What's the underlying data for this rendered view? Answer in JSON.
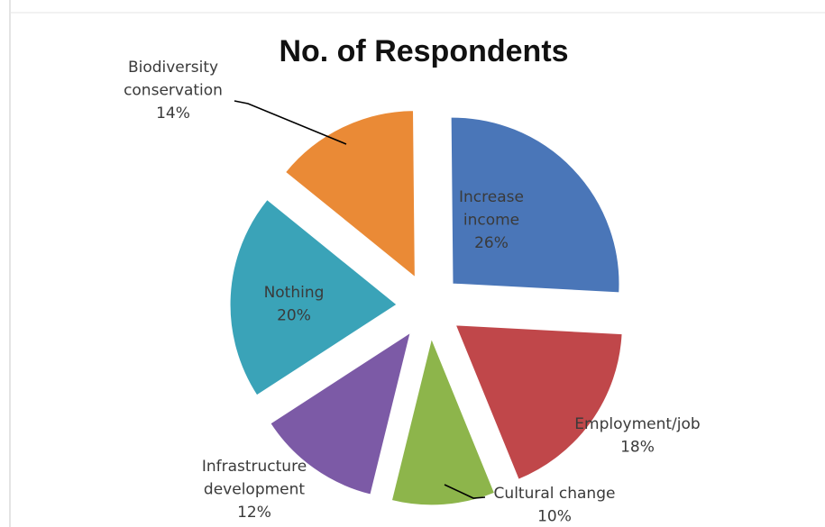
{
  "chart_data": {
    "type": "pie",
    "title": "No. of Respondents",
    "exploded": true,
    "slices": [
      {
        "label": "Increase income",
        "value": 26,
        "pct_label": "26%",
        "color": "#4a76b8",
        "label_inside": true
      },
      {
        "label": "Employment/job",
        "value": 18,
        "pct_label": "18%",
        "color": "#c0474a",
        "label_inside": false
      },
      {
        "label": "Cultural change",
        "value": 10,
        "pct_label": "10%",
        "color": "#8db54b",
        "label_inside": false
      },
      {
        "label": "Infrastructure development",
        "value": 12,
        "pct_label": "12%",
        "color": "#7c5aa6",
        "label_inside": false
      },
      {
        "label": "Nothing",
        "value": 20,
        "pct_label": "20%",
        "color": "#3aa3b8",
        "label_inside": true
      },
      {
        "label": "Biodiversity conservation",
        "value": 14,
        "pct_label": "14%",
        "color": "#ea8a36",
        "label_inside": false
      }
    ]
  }
}
